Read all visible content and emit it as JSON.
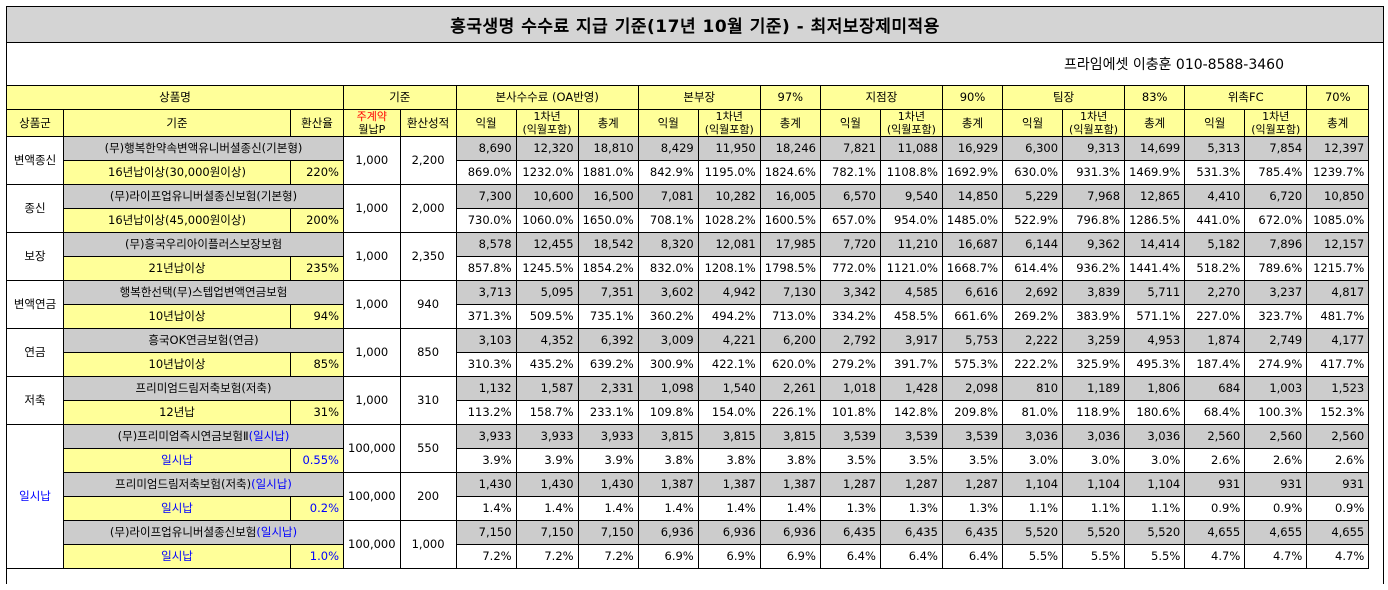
{
  "title": "흥국생명 수수료 지급 기준(17년 10월 기준) - 최저보장제미적용",
  "contact": "프라임에셋 이충훈 010-8588-3460",
  "header_row1": {
    "product_name": "상품명",
    "basis": "기준",
    "hq": "본사수수료 (OA반영)",
    "manager_label": "본부장",
    "manager_pct": "97%",
    "branch_label": "지점장",
    "branch_pct": "90%",
    "team_label": "팀장",
    "team_pct": "83%",
    "fc_label": "위촉FC",
    "fc_pct": "70%"
  },
  "header_row2": {
    "group": "상품군",
    "basis": "기준",
    "rate": "환산율",
    "premium_line1": "주계약",
    "premium_line2": "월납P",
    "converted": "환산성적",
    "cols": [
      {
        "a": "익월",
        "b1": "1차년",
        "b2": "(익월포함)",
        "c": "총계"
      },
      {
        "a": "익월",
        "b1": "1차년",
        "b2": "(익월포함)",
        "c": "총계"
      },
      {
        "a": "익월",
        "b1": "1차년",
        "b2": "(익월포함)",
        "c": "총계"
      },
      {
        "a": "익월",
        "b1": "1차년",
        "b2": "(익월포함)",
        "c": "총계"
      },
      {
        "a": "익월",
        "b1": "1차년",
        "b2": "(익월포함)",
        "c": "총계"
      }
    ]
  },
  "groups": [
    {
      "group": "변액종신",
      "products": [
        {
          "name": "(무)행복한약속변액유니버셜종신(기본형)",
          "name_suffix": "",
          "basis": "16년납이상(30,000원이상)",
          "rate": "220%",
          "premium": "1,000",
          "converted": "2,200",
          "amounts": [
            "8,690",
            "12,320",
            "18,810",
            "8,429",
            "11,950",
            "18,246",
            "7,821",
            "11,088",
            "16,929",
            "6,300",
            "9,313",
            "14,699",
            "5,313",
            "7,854",
            "12,397"
          ],
          "percents": [
            "869.0%",
            "1232.0%",
            "1881.0%",
            "842.9%",
            "1195.0%",
            "1824.6%",
            "782.1%",
            "1108.8%",
            "1692.9%",
            "630.0%",
            "931.3%",
            "1469.9%",
            "531.3%",
            "785.4%",
            "1239.7%"
          ]
        }
      ]
    },
    {
      "group": "종신",
      "products": [
        {
          "name": "(무)라이프업유니버셜종신보험(기본형)",
          "name_suffix": "",
          "basis": "16년납이상(45,000원이상)",
          "rate": "200%",
          "premium": "1,000",
          "converted": "2,000",
          "amounts": [
            "7,300",
            "10,600",
            "16,500",
            "7,081",
            "10,282",
            "16,005",
            "6,570",
            "9,540",
            "14,850",
            "5,229",
            "7,968",
            "12,865",
            "4,410",
            "6,720",
            "10,850"
          ],
          "percents": [
            "730.0%",
            "1060.0%",
            "1650.0%",
            "708.1%",
            "1028.2%",
            "1600.5%",
            "657.0%",
            "954.0%",
            "1485.0%",
            "522.9%",
            "796.8%",
            "1286.5%",
            "441.0%",
            "672.0%",
            "1085.0%"
          ]
        }
      ]
    },
    {
      "group": "보장",
      "products": [
        {
          "name": "(무)흥국우리아이플러스보장보험",
          "name_suffix": "",
          "basis": "21년납이상",
          "rate": "235%",
          "premium": "1,000",
          "converted": "2,350",
          "amounts": [
            "8,578",
            "12,455",
            "18,542",
            "8,320",
            "12,081",
            "17,985",
            "7,720",
            "11,210",
            "16,687",
            "6,144",
            "9,362",
            "14,414",
            "5,182",
            "7,896",
            "12,157"
          ],
          "percents": [
            "857.8%",
            "1245.5%",
            "1854.2%",
            "832.0%",
            "1208.1%",
            "1798.5%",
            "772.0%",
            "1121.0%",
            "1668.7%",
            "614.4%",
            "936.2%",
            "1441.4%",
            "518.2%",
            "789.6%",
            "1215.7%"
          ]
        }
      ]
    },
    {
      "group": "변액연금",
      "products": [
        {
          "name": "행복한선택(무)스텝업변액연금보험",
          "name_suffix": "",
          "basis": "10년납이상",
          "rate": "94%",
          "premium": "1,000",
          "converted": "940",
          "amounts": [
            "3,713",
            "5,095",
            "7,351",
            "3,602",
            "4,942",
            "7,130",
            "3,342",
            "4,585",
            "6,616",
            "2,692",
            "3,839",
            "5,711",
            "2,270",
            "3,237",
            "4,817"
          ],
          "percents": [
            "371.3%",
            "509.5%",
            "735.1%",
            "360.2%",
            "494.2%",
            "713.0%",
            "334.2%",
            "458.5%",
            "661.6%",
            "269.2%",
            "383.9%",
            "571.1%",
            "227.0%",
            "323.7%",
            "481.7%"
          ]
        }
      ]
    },
    {
      "group": "연금",
      "products": [
        {
          "name": "흥국OK연금보험(연금)",
          "name_suffix": "",
          "basis": "10년납이상",
          "rate": "85%",
          "premium": "1,000",
          "converted": "850",
          "amounts": [
            "3,103",
            "4,352",
            "6,392",
            "3,009",
            "4,221",
            "6,200",
            "2,792",
            "3,917",
            "5,753",
            "2,222",
            "3,259",
            "4,953",
            "1,874",
            "2,749",
            "4,177"
          ],
          "percents": [
            "310.3%",
            "435.2%",
            "639.2%",
            "300.9%",
            "422.1%",
            "620.0%",
            "279.2%",
            "391.7%",
            "575.3%",
            "222.2%",
            "325.9%",
            "495.3%",
            "187.4%",
            "274.9%",
            "417.7%"
          ]
        }
      ]
    },
    {
      "group": "저축",
      "products": [
        {
          "name": "프리미엄드림저축보험(저축)",
          "name_suffix": "",
          "basis": "12년납",
          "rate": "31%",
          "premium": "1,000",
          "converted": "310",
          "amounts": [
            "1,132",
            "1,587",
            "2,331",
            "1,098",
            "1,540",
            "2,261",
            "1,018",
            "1,428",
            "2,098",
            "810",
            "1,189",
            "1,806",
            "684",
            "1,003",
            "1,523"
          ],
          "percents": [
            "113.2%",
            "158.7%",
            "233.1%",
            "109.8%",
            "154.0%",
            "226.1%",
            "101.8%",
            "142.8%",
            "209.8%",
            "81.0%",
            "118.9%",
            "180.6%",
            "68.4%",
            "100.3%",
            "152.3%"
          ]
        }
      ]
    },
    {
      "group": "일시납",
      "products": [
        {
          "name": "(무)프리미엄즉시연금보험Ⅱ",
          "name_suffix": "(일시납)",
          "basis": "일시납",
          "rate": "0.55%",
          "premium": "100,000",
          "converted": "550",
          "amounts": [
            "3,933",
            "3,933",
            "3,933",
            "3,815",
            "3,815",
            "3,815",
            "3,539",
            "3,539",
            "3,539",
            "3,036",
            "3,036",
            "3,036",
            "2,560",
            "2,560",
            "2,560"
          ],
          "percents": [
            "3.9%",
            "3.9%",
            "3.9%",
            "3.8%",
            "3.8%",
            "3.8%",
            "3.5%",
            "3.5%",
            "3.5%",
            "3.0%",
            "3.0%",
            "3.0%",
            "2.6%",
            "2.6%",
            "2.6%"
          ]
        },
        {
          "name": "프리미엄드림저축보험(저축)",
          "name_suffix": "(일시납)",
          "basis": "일시납",
          "rate": "0.2%",
          "premium": "100,000",
          "converted": "200",
          "amounts": [
            "1,430",
            "1,430",
            "1,430",
            "1,387",
            "1,387",
            "1,387",
            "1,287",
            "1,287",
            "1,287",
            "1,104",
            "1,104",
            "1,104",
            "931",
            "931",
            "931"
          ],
          "percents": [
            "1.4%",
            "1.4%",
            "1.4%",
            "1.4%",
            "1.4%",
            "1.4%",
            "1.3%",
            "1.3%",
            "1.3%",
            "1.1%",
            "1.1%",
            "1.1%",
            "0.9%",
            "0.9%",
            "0.9%"
          ]
        },
        {
          "name": "(무)라이프업유니버셜종신보험",
          "name_suffix": "(일시납)",
          "basis": "일시납",
          "rate": "1.0%",
          "premium": "100,000",
          "converted": "1,000",
          "amounts": [
            "7,150",
            "7,150",
            "7,150",
            "6,936",
            "6,936",
            "6,936",
            "6,435",
            "6,435",
            "6,435",
            "5,520",
            "5,520",
            "5,520",
            "4,655",
            "4,655",
            "4,655"
          ],
          "percents": [
            "7.2%",
            "7.2%",
            "7.2%",
            "6.9%",
            "6.9%",
            "6.9%",
            "6.4%",
            "6.4%",
            "6.4%",
            "5.5%",
            "5.5%",
            "5.5%",
            "4.7%",
            "4.7%",
            "4.7%"
          ]
        }
      ]
    }
  ]
}
